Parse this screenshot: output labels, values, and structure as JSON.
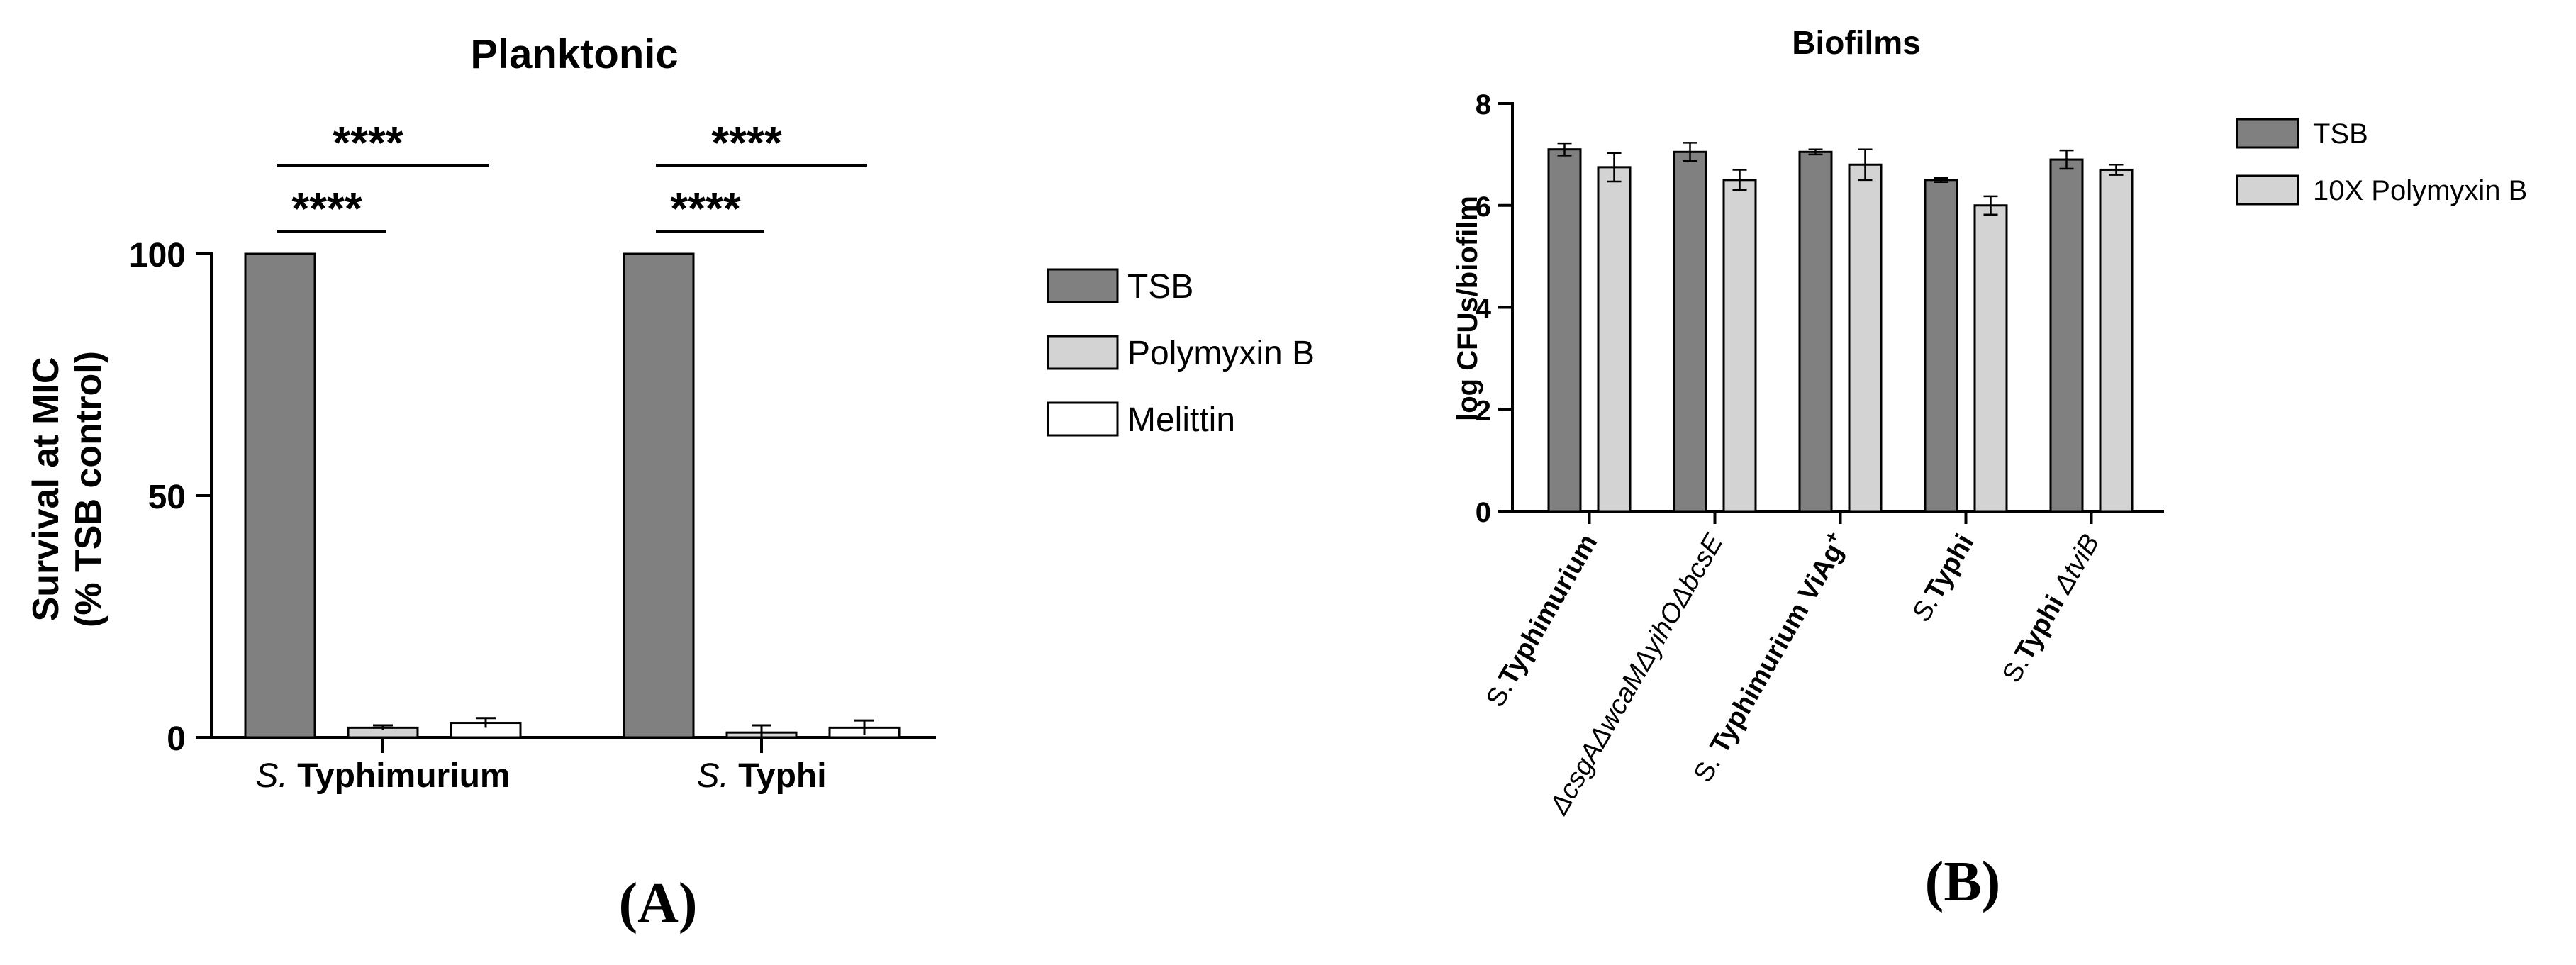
{
  "chart_data": [
    {
      "type": "bar",
      "title": "Planktonic",
      "ylabel_line1": "Survival at MIC",
      "ylabel_line2": "(% TSB control)",
      "xlabel": "",
      "ylim": [
        0,
        100
      ],
      "yticks": [
        "0",
        "50",
        "100"
      ],
      "categories": [
        {
          "italic": "S.",
          "bold": " Typhimurium"
        },
        {
          "italic": "S.",
          "bold": " Typhi"
        }
      ],
      "series": [
        {
          "name": "TSB",
          "color": "#808080",
          "values": [
            100,
            100
          ],
          "errors": [
            0,
            0
          ]
        },
        {
          "name": "Polymyxin B",
          "color": "#d3d3d3",
          "values": [
            2,
            1
          ],
          "errors": [
            0.5,
            1.5
          ]
        },
        {
          "name": "Melittin",
          "color": "#ffffff",
          "values": [
            3,
            2
          ],
          "errors": [
            1,
            1.5
          ]
        }
      ],
      "significance": [
        {
          "label": "****"
        },
        {
          "label": "****"
        },
        {
          "label": "****"
        },
        {
          "label": "****"
        }
      ],
      "legend_position": "right",
      "panel_label": "(A)"
    },
    {
      "type": "bar",
      "title": "Biofilms",
      "ylabel": "log CFUs/biofilm",
      "xlabel": "",
      "ylim": [
        0,
        8
      ],
      "yticks": [
        "0",
        "2",
        "4",
        "6",
        "8"
      ],
      "categories": [
        {
          "parts": [
            {
              "t": "S.",
              "s": "n"
            },
            {
              "t": "Typhimurium",
              "s": "b"
            }
          ]
        },
        {
          "parts": [
            {
              "t": "ΔcsgAΔwcaMΔyihOΔbcsE",
              "s": "i"
            }
          ]
        },
        {
          "parts": [
            {
              "t": "S. ",
              "s": "n"
            },
            {
              "t": "Typhimurium ViAg",
              "s": "b"
            },
            {
              "t": "+",
              "s": "sup"
            }
          ]
        },
        {
          "parts": [
            {
              "t": "S.",
              "s": "i"
            },
            {
              "t": "Typhi",
              "s": "b"
            }
          ]
        },
        {
          "parts": [
            {
              "t": "S.",
              "s": "n"
            },
            {
              "t": "Typhi ",
              "s": "b"
            },
            {
              "t": "ΔtviB",
              "s": "i"
            }
          ]
        }
      ],
      "series": [
        {
          "name": "TSB",
          "color": "#808080",
          "values": [
            7.1,
            7.05,
            7.05,
            6.5,
            6.9
          ],
          "errors": [
            0.12,
            0.18,
            0.05,
            0.04,
            0.18
          ]
        },
        {
          "name": "10X Polymyxin B",
          "color": "#d3d3d3",
          "values": [
            6.75,
            6.5,
            6.8,
            6.0,
            6.7
          ],
          "errors": [
            0.28,
            0.2,
            0.3,
            0.18,
            0.1
          ]
        }
      ],
      "legend_position": "right",
      "panel_label": "(B)"
    }
  ]
}
